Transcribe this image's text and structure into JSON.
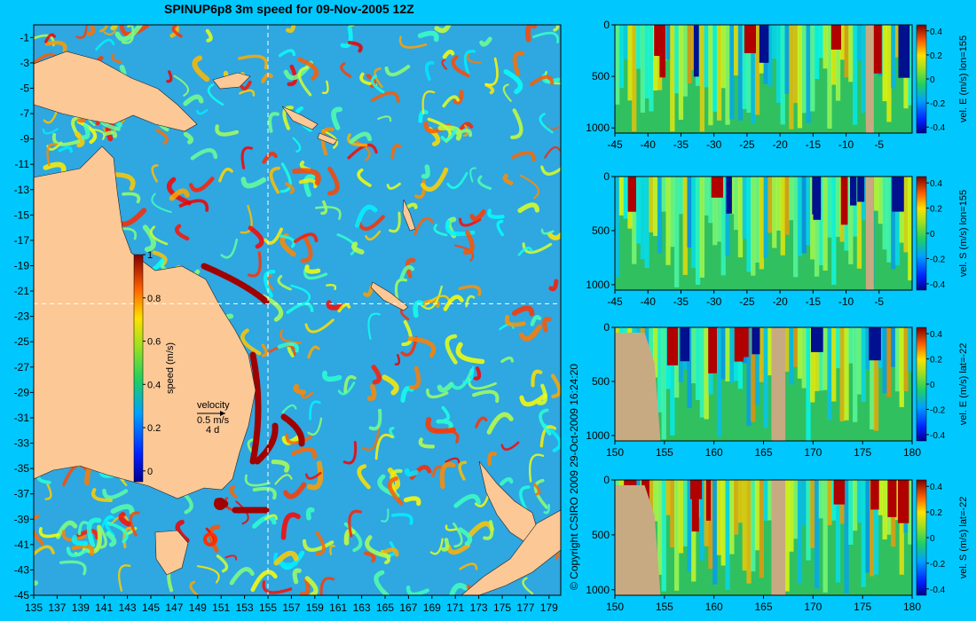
{
  "title": "SPINUP6p8 3m speed for 09-Nov-2005 12Z",
  "copyright": "© Copyright CSIRO 2009  29-Oct-2009 16:24:20",
  "colors": {
    "background": "#00c8ff",
    "land": "#fcc896",
    "mask": "#c8aa82",
    "ocean": "#2fa7e0"
  },
  "chart_data": [
    {
      "type": "heatmap",
      "name": "map",
      "x_ticks": [
        "135",
        "137",
        "139",
        "141",
        "143",
        "145",
        "147",
        "149",
        "151",
        "153",
        "155",
        "157",
        "159",
        "161",
        "163",
        "165",
        "167",
        "169",
        "171",
        "173",
        "175",
        "177",
        "179"
      ],
      "y_ticks": [
        "-1",
        "-3",
        "-5",
        "-7",
        "-9",
        "-11",
        "-13",
        "-15",
        "-17",
        "-19",
        "-21",
        "-23",
        "-25",
        "-27",
        "-29",
        "-31",
        "-33",
        "-35",
        "-37",
        "-39",
        "-41",
        "-43",
        "-45"
      ],
      "xlim": [
        135,
        180
      ],
      "ylim": [
        -45,
        0
      ],
      "colorbar": {
        "ticks": [
          "1",
          "0.8",
          "0.6",
          "0.4",
          "0.2",
          "0"
        ],
        "label": "speed (m/s)",
        "range": [
          -0.05,
          1
        ]
      },
      "legend": {
        "title": "velocity",
        "line1": "0.5 m/s",
        "line2": "4 d"
      },
      "crosshair": {
        "lon": 155,
        "lat": -22
      }
    },
    {
      "type": "heatmap",
      "name": "panel-lon155-east",
      "x_ticks": [
        "-45",
        "-40",
        "-35",
        "-30",
        "-25",
        "-20",
        "-15",
        "-10",
        "-5"
      ],
      "y_ticks": [
        "0",
        "500",
        "1000"
      ],
      "xlim": [
        -45,
        0
      ],
      "ylim": [
        1050,
        0
      ],
      "colorbar": {
        "ticks": [
          "0.4",
          "0.2",
          "0",
          "-0.2",
          "-0.4"
        ],
        "label": "vel. E (m/s) lon=155"
      }
    },
    {
      "type": "heatmap",
      "name": "panel-lon155-south",
      "x_ticks": [
        "-45",
        "-40",
        "-35",
        "-30",
        "-25",
        "-20",
        "-15",
        "-10",
        "-5"
      ],
      "y_ticks": [
        "0",
        "500",
        "1000"
      ],
      "xlim": [
        -45,
        0
      ],
      "ylim": [
        1050,
        0
      ],
      "colorbar": {
        "ticks": [
          "0.4",
          "0.2",
          "0",
          "-0.2",
          "-0.4"
        ],
        "label": "vel. S (m/s) lon=155"
      }
    },
    {
      "type": "heatmap",
      "name": "panel-lat22-east",
      "x_ticks": [
        "150",
        "155",
        "160",
        "165",
        "170",
        "175",
        "180"
      ],
      "y_ticks": [
        "0",
        "500",
        "1000"
      ],
      "xlim": [
        150,
        180
      ],
      "ylim": [
        1050,
        0
      ],
      "colorbar": {
        "ticks": [
          "0.4",
          "0.2",
          "0",
          "-0.2",
          "-0.4"
        ],
        "label": "vel. E (m/s) lat=-22"
      }
    },
    {
      "type": "heatmap",
      "name": "panel-lat22-south",
      "x_ticks": [
        "150",
        "155",
        "160",
        "165",
        "170",
        "175",
        "180"
      ],
      "y_ticks": [
        "0",
        "500",
        "1000"
      ],
      "xlim": [
        150,
        180
      ],
      "ylim": [
        1050,
        0
      ],
      "colorbar": {
        "ticks": [
          "0.4",
          "0.2",
          "0",
          "-0.2",
          "-0.4"
        ],
        "label": "vel. S (m/s) lat=-22"
      }
    }
  ]
}
